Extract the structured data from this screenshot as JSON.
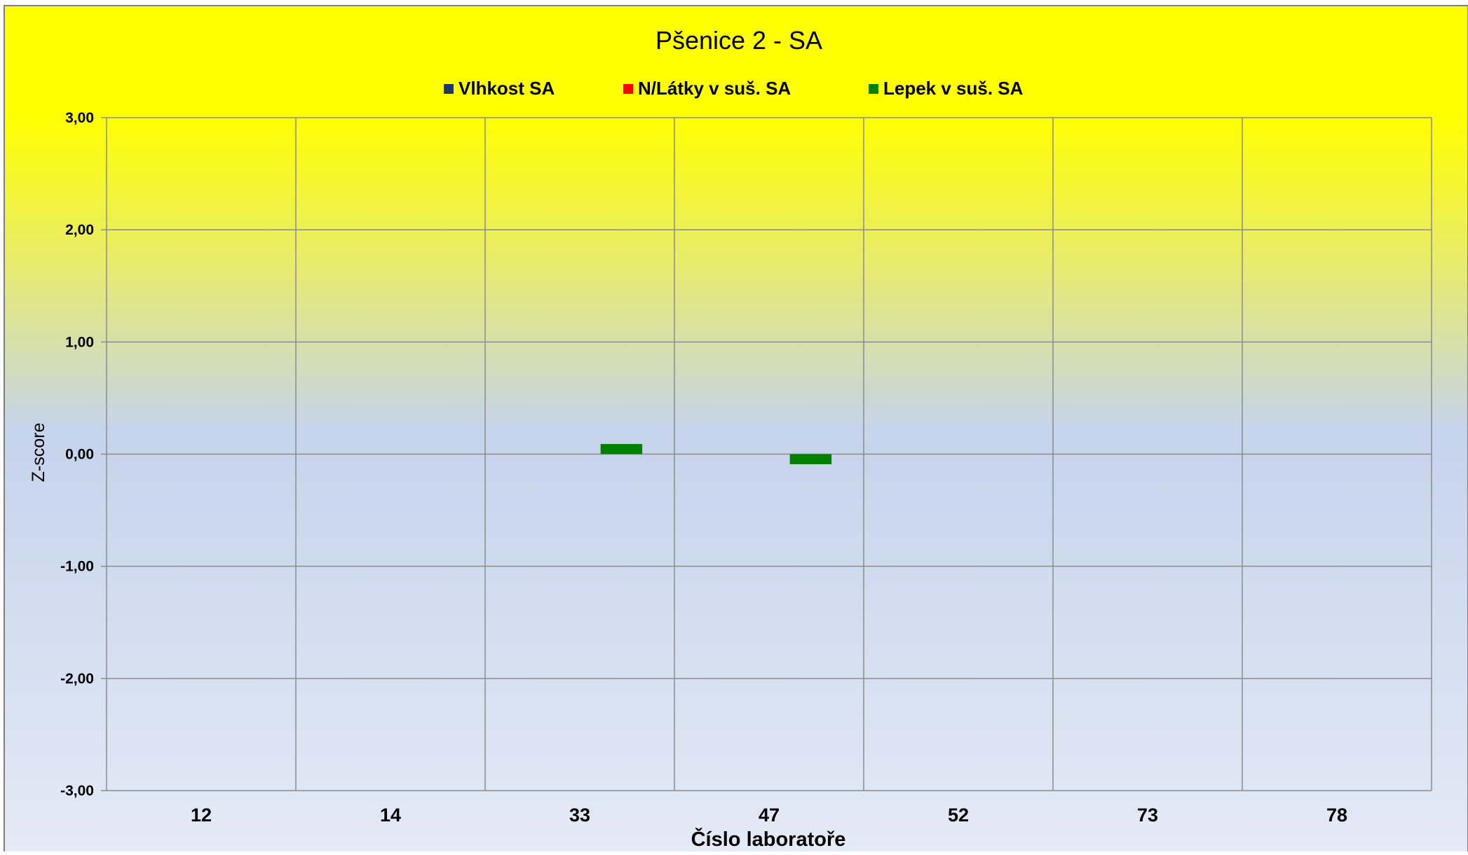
{
  "chart_data": {
    "type": "bar",
    "title": "Pšenice 2 - SA",
    "xlabel": "Číslo laboratoře",
    "ylabel": "Z-score",
    "categories": [
      "12",
      "14",
      "33",
      "47",
      "52",
      "73",
      "78"
    ],
    "ylim": [
      -3,
      3
    ],
    "yticks": [
      3,
      2,
      1,
      0,
      -1,
      -2,
      -3
    ],
    "ytick_labels": [
      "3,00",
      "2,00",
      "1,00",
      "0,00",
      "-1,00",
      "-2,00",
      "-3,00"
    ],
    "grid": true,
    "legend_position": "top",
    "series": [
      {
        "name": "Vlhkost SA",
        "color": "#1F3864",
        "values": [
          null,
          null,
          null,
          null,
          null,
          null,
          null
        ]
      },
      {
        "name": "N/Látky v suš. SA",
        "color": "#FF0000",
        "values": [
          null,
          null,
          null,
          null,
          null,
          null,
          null
        ]
      },
      {
        "name": "Lepek v suš. SA",
        "color": "#008000",
        "values": [
          null,
          null,
          0.09,
          -0.09,
          null,
          null,
          null
        ]
      }
    ],
    "colors": {
      "background_top": "#FFFF00",
      "background_mid": "#C5D3EB",
      "background_bottom": "#E4EAF6",
      "gridline": "#8C8C8C"
    }
  }
}
